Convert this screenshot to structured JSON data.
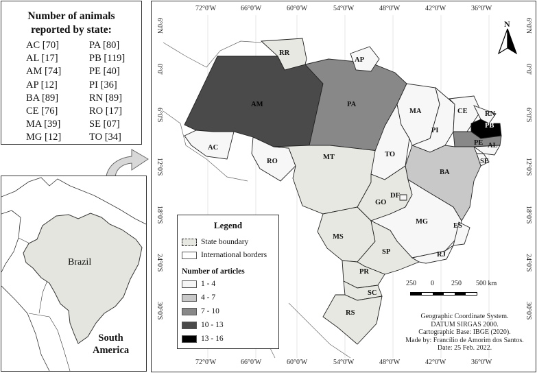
{
  "stats": {
    "title_line1": "Number of animals",
    "title_line2": "reported by state:",
    "left": [
      "AC [70]",
      "AL [17]",
      "AM [74]",
      "AP [12]",
      "BA [89]",
      "CE [76]",
      "MA [39]",
      "MG [12]"
    ],
    "right": [
      "PA [80]",
      "PB [119]",
      "PE [40]",
      "PI [36]",
      "RN [89]",
      "RO [17]",
      "SE [07]",
      "TO [34]"
    ]
  },
  "inset": {
    "country_label": "Brazil",
    "continent_line1": "South",
    "continent_line2": "America"
  },
  "axes": {
    "top": [
      "72°0'W",
      "66°0'W",
      "60°0'W",
      "54°0'W",
      "48°0'W",
      "42°0'W",
      "36°0'W"
    ],
    "bottom": [
      "72°0'W",
      "66°0'W",
      "60°0'W",
      "54°0'W",
      "48°0'W",
      "42°0'W",
      "36°0'W"
    ],
    "left": [
      "6°0'N",
      "0°0'",
      "6°0'S",
      "12°0'S",
      "18°0'S",
      "24°0'S",
      "30°0'S"
    ],
    "right": [
      "6°0'N",
      "0°0'",
      "6°0'S",
      "12°0'S",
      "18°0'S",
      "24°0'S",
      "30°0'S"
    ]
  },
  "states": {
    "AM": "AM",
    "PA": "PA",
    "RR": "RR",
    "AP": "AP",
    "AC": "AC",
    "RO": "RO",
    "MT": "MT",
    "TO": "TO",
    "MA": "MA",
    "PI": "PI",
    "CE": "CE",
    "RN": "RN",
    "PB": "PB",
    "PE": "PE",
    "AL": "AL",
    "SE": "SE",
    "BA": "BA",
    "GO": "GO",
    "DF": "DF",
    "MG": "MG",
    "ES": "ES",
    "MS": "MS",
    "SP": "SP",
    "RJ": "RJ",
    "PR": "PR",
    "SC": "SC",
    "RS": "RS"
  },
  "legend": {
    "title": "Legend",
    "state_boundary": "State boundary",
    "international_borders": "International borders",
    "articles_title": "Number of articles",
    "classes": [
      {
        "label": "1 - 4",
        "color": "#f5f5f5"
      },
      {
        "label": "4 - 7",
        "color": "#c8c8c8"
      },
      {
        "label": "7 - 10",
        "color": "#888888"
      },
      {
        "label": "10 - 13",
        "color": "#4a4a4a"
      },
      {
        "label": "13 - 16",
        "color": "#000000"
      }
    ]
  },
  "scale": {
    "labels": [
      "250",
      "0",
      "250",
      "500 km"
    ]
  },
  "north": "N",
  "credits": [
    "Geographic Coordinate System.",
    "DATUM SIRGAS 2000.",
    "Cartographic Base: IBGE (2020).",
    "Made by: Francílio de Amorim dos Santos.",
    "Date: 25 Feb. 2022."
  ]
}
